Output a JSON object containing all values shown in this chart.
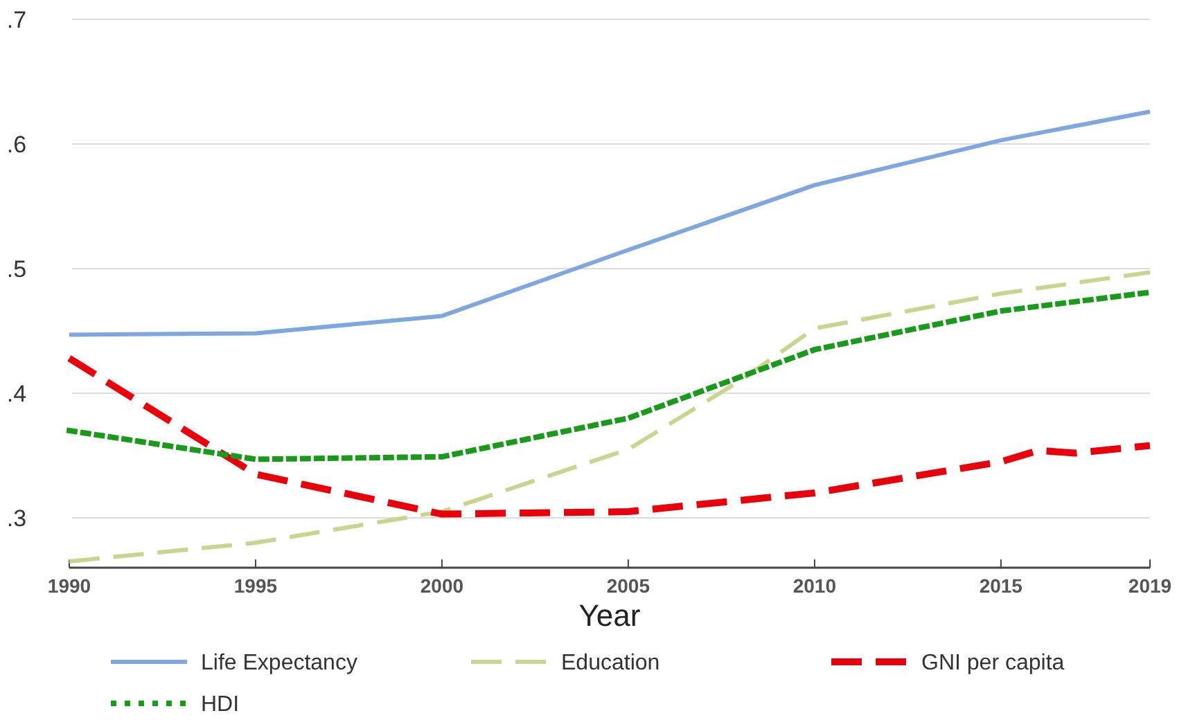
{
  "chart_data": {
    "type": "line",
    "xlabel": "Year",
    "x": [
      1990,
      1995,
      2000,
      2005,
      2010,
      2015,
      2019
    ],
    "xlim": [
      1990,
      2019
    ],
    "xticks": [
      1990,
      1995,
      2000,
      2005,
      2010,
      2015,
      2019
    ],
    "ylim": [
      0.26,
      0.7
    ],
    "yticks": [
      {
        "value": 0.3,
        "label": ".3"
      },
      {
        "value": 0.4,
        "label": ".4"
      },
      {
        "value": 0.5,
        "label": ".5"
      },
      {
        "value": 0.6,
        "label": ".6"
      },
      {
        "value": 0.7,
        "label": ".7"
      }
    ],
    "grid": "y",
    "legend": "bottom",
    "series": [
      {
        "name": "Life Expectancy",
        "color": "#7ea6e0",
        "line_style": "solid",
        "values": [
          0.447,
          0.448,
          0.462,
          0.515,
          0.567,
          0.603,
          0.626
        ]
      },
      {
        "name": "Education",
        "color": "#c9d58f",
        "line_style": "dashed",
        "x": [
          1990,
          1995,
          2000,
          2005,
          2008,
          2010,
          2015,
          2019
        ],
        "values": [
          0.265,
          0.28,
          0.305,
          0.355,
          0.41,
          0.452,
          0.48,
          0.497
        ]
      },
      {
        "name": "GNI per capita",
        "color": "#e8000b",
        "line_style": "dashed",
        "x": [
          1990,
          1995,
          2000,
          2005,
          2010,
          2015,
          2016,
          2017,
          2019
        ],
        "values": [
          0.428,
          0.335,
          0.303,
          0.305,
          0.32,
          0.345,
          0.354,
          0.352,
          0.358
        ]
      },
      {
        "name": "HDI",
        "color": "#1a9a1a",
        "line_style": "dotted",
        "values": [
          0.37,
          0.347,
          0.349,
          0.38,
          0.435,
          0.466,
          0.481
        ]
      }
    ]
  }
}
